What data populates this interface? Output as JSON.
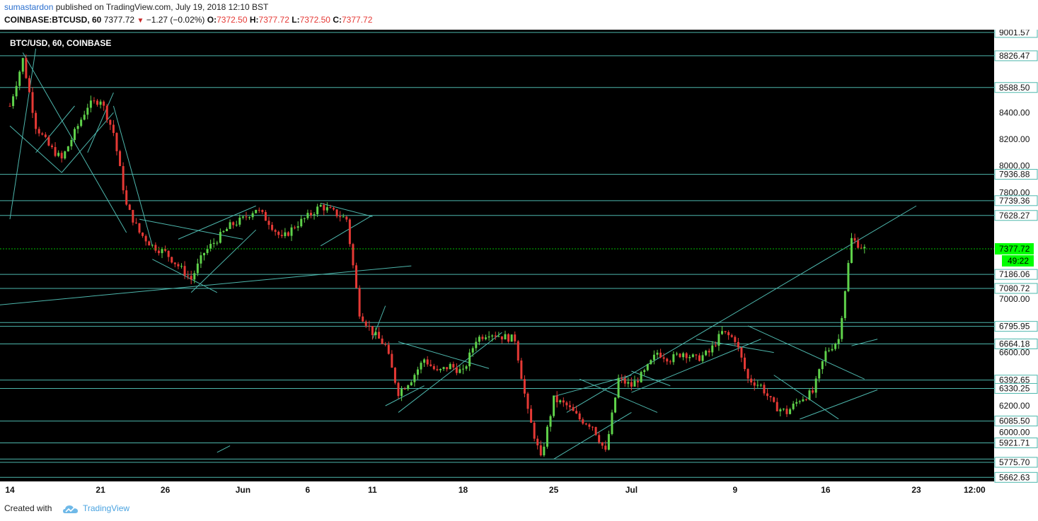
{
  "header": {
    "author": "sumastardon",
    "published_text": "published on TradingView.com, July 19, 2018 12:10 BST",
    "symbol": "COINBASE:BTCUSD, 60",
    "last": "7377.72",
    "change": "−1.27 (−0.02%)",
    "o_label": "O:",
    "o_value": "7372.50",
    "h_label": "H:",
    "h_value": "7377.72",
    "l_label": "L:",
    "l_value": "7372.50",
    "c_label": "C:",
    "c_value": "7377.72"
  },
  "footer": {
    "created_with": "Created with",
    "brand": "TradingView"
  },
  "colors": {
    "background": "#000000",
    "line": "#4db6ac",
    "up": "#5fd14a",
    "down": "#e53935",
    "axis_bg": "#ffffff",
    "current_price": "#00ff00"
  },
  "chart_data": {
    "type": "candlestick",
    "title": "BTC/USD, 60, COINBASE",
    "x_tick_labels": [
      "14",
      "21",
      "26",
      "Jun",
      "6",
      "11",
      "18",
      "25",
      "Jul",
      "9",
      "16",
      "23",
      "12:00"
    ],
    "y_tick_labels": [
      "8400.00",
      "8200.00",
      "8000.00",
      "7800.00",
      "7000.00",
      "6600.00",
      "6200.00",
      "6000.00"
    ],
    "ylim": [
      5600,
      9040
    ],
    "horizontal_levels": [
      9001.57,
      8826.47,
      8588.5,
      7936.88,
      7739.36,
      7628.27,
      7186.06,
      7080.72,
      6824.92,
      6795.95,
      6664.18,
      6392.65,
      6330.25,
      6085.5,
      5921.71,
      5800.0,
      5775.7,
      5662.63
    ],
    "level_labels": [
      "9001.57",
      "8826.47",
      "8588.50",
      "7936.88",
      "7739.36",
      "7628.27",
      "7186.06",
      "7080.72",
      "6795.95",
      "6664.18",
      "6392.65",
      "6330.25",
      "6085.50",
      "5921.71",
      "5775.70",
      "5662.63"
    ],
    "current_price": 7377.72,
    "current_price_label": "7377.72",
    "secondary_price_label": "49:22",
    "price_path": [
      {
        "t": "May 14",
        "p": 8450
      },
      {
        "t": "May 15",
        "p": 8800
      },
      {
        "t": "May 16",
        "p": 8300
      },
      {
        "t": "May 17",
        "p": 8150
      },
      {
        "t": "May 18",
        "p": 8050
      },
      {
        "t": "May 19",
        "p": 8250
      },
      {
        "t": "May 20",
        "p": 8450
      },
      {
        "t": "May 21",
        "p": 8500
      },
      {
        "t": "May 22",
        "p": 8250
      },
      {
        "t": "May 23",
        "p": 7700
      },
      {
        "t": "May 24",
        "p": 7500
      },
      {
        "t": "May 25",
        "p": 7400
      },
      {
        "t": "May 26",
        "p": 7350
      },
      {
        "t": "May 27",
        "p": 7250
      },
      {
        "t": "May 28",
        "p": 7150
      },
      {
        "t": "May 29",
        "p": 7350
      },
      {
        "t": "May 30",
        "p": 7450
      },
      {
        "t": "May 31",
        "p": 7550
      },
      {
        "t": "Jun 1",
        "p": 7600
      },
      {
        "t": "Jun 2",
        "p": 7680
      },
      {
        "t": "Jun 3",
        "p": 7580
      },
      {
        "t": "Jun 4",
        "p": 7450
      },
      {
        "t": "Jun 5",
        "p": 7550
      },
      {
        "t": "Jun 6",
        "p": 7620
      },
      {
        "t": "Jun 7",
        "p": 7700
      },
      {
        "t": "Jun 8",
        "p": 7650
      },
      {
        "t": "Jun 9",
        "p": 7600
      },
      {
        "t": "Jun 10",
        "p": 6900
      },
      {
        "t": "Jun 11",
        "p": 6750
      },
      {
        "t": "Jun 12",
        "p": 6650
      },
      {
        "t": "Jun 13",
        "p": 6300
      },
      {
        "t": "Jun 14",
        "p": 6400
      },
      {
        "t": "Jun 15",
        "p": 6550
      },
      {
        "t": "Jun 16",
        "p": 6450
      },
      {
        "t": "Jun 17",
        "p": 6500
      },
      {
        "t": "Jun 18",
        "p": 6450
      },
      {
        "t": "Jun 19",
        "p": 6700
      },
      {
        "t": "Jun 20",
        "p": 6750
      },
      {
        "t": "Jun 21",
        "p": 6720
      },
      {
        "t": "Jun 22",
        "p": 6700
      },
      {
        "t": "Jun 23",
        "p": 6150
      },
      {
        "t": "Jun 24",
        "p": 5800
      },
      {
        "t": "Jun 25",
        "p": 6250
      },
      {
        "t": "Jun 26",
        "p": 6200
      },
      {
        "t": "Jun 27",
        "p": 6100
      },
      {
        "t": "Jun 28",
        "p": 6050
      },
      {
        "t": "Jun 29",
        "p": 5850
      },
      {
        "t": "Jun 30",
        "p": 6400
      },
      {
        "t": "Jul 1",
        "p": 6350
      },
      {
        "t": "Jul 2",
        "p": 6450
      },
      {
        "t": "Jul 3",
        "p": 6600
      },
      {
        "t": "Jul 4",
        "p": 6550
      },
      {
        "t": "Jul 5",
        "p": 6600
      },
      {
        "t": "Jul 6",
        "p": 6550
      },
      {
        "t": "Jul 7",
        "p": 6600
      },
      {
        "t": "Jul 8",
        "p": 6750
      },
      {
        "t": "Jul 9",
        "p": 6700
      },
      {
        "t": "Jul 10",
        "p": 6400
      },
      {
        "t": "Jul 11",
        "p": 6350
      },
      {
        "t": "Jul 12",
        "p": 6200
      },
      {
        "t": "Jul 13",
        "p": 6150
      },
      {
        "t": "Jul 14",
        "p": 6250
      },
      {
        "t": "Jul 15",
        "p": 6300
      },
      {
        "t": "Jul 16",
        "p": 6600
      },
      {
        "t": "Jul 17",
        "p": 6700
      },
      {
        "t": "Jul 18",
        "p": 7450
      },
      {
        "t": "Jul 19",
        "p": 7377.72
      }
    ]
  }
}
